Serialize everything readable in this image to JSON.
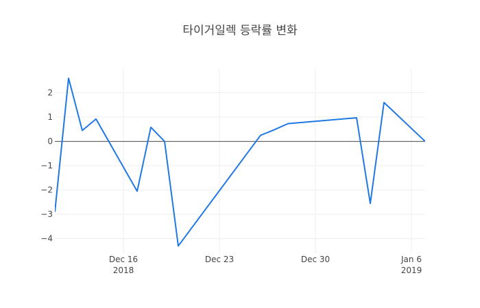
{
  "chart_data": {
    "type": "line",
    "title": "타이거일렉 등락률 변화",
    "xlabel": "",
    "ylabel": "",
    "x": [
      "2018-12-11",
      "2018-12-12",
      "2018-12-13",
      "2018-12-14",
      "2018-12-17",
      "2018-12-18",
      "2018-12-19",
      "2018-12-20",
      "2018-12-26",
      "2018-12-27",
      "2018-12-28",
      "2019-01-02",
      "2019-01-03",
      "2019-01-04",
      "2019-01-07"
    ],
    "series": [
      {
        "color": "#1f77e4",
        "values": [
          -2.9,
          2.6,
          0.45,
          0.92,
          -2.05,
          0.58,
          0.0,
          -4.3,
          0.25,
          0.48,
          0.73,
          0.97,
          -2.55,
          1.6,
          0.0
        ]
      }
    ],
    "xlim": [
      "2018-12-11",
      "2019-01-07"
    ],
    "ylim": [
      -4.6,
      3.0
    ],
    "x_ticks": [
      {
        "date": "2018-12-16",
        "label": "Dec 16",
        "sublabel": "2018"
      },
      {
        "date": "2018-12-23",
        "label": "Dec 23",
        "sublabel": ""
      },
      {
        "date": "2018-12-30",
        "label": "Dec 30",
        "sublabel": ""
      },
      {
        "date": "2019-01-06",
        "label": "Jan 6",
        "sublabel": "2019"
      }
    ],
    "y_ticks": [
      {
        "value": 2,
        "label": "2"
      },
      {
        "value": 1,
        "label": "1"
      },
      {
        "value": 0,
        "label": "0"
      },
      {
        "value": -1,
        "label": "−1"
      },
      {
        "value": -2,
        "label": "−2"
      },
      {
        "value": -3,
        "label": "−3"
      },
      {
        "value": -4,
        "label": "−4"
      }
    ],
    "grid": true,
    "legend": "none"
  }
}
